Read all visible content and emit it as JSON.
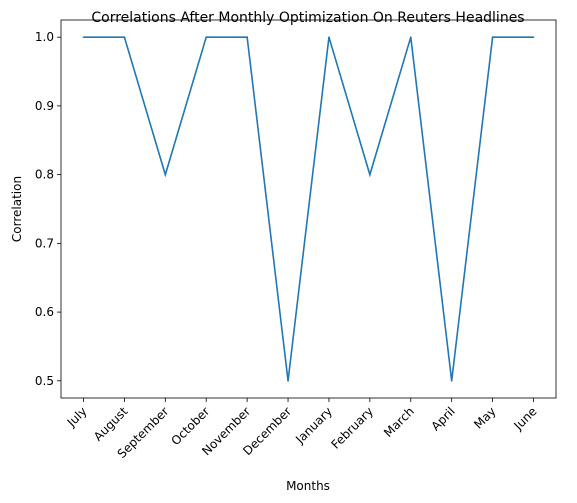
{
  "chart_data": {
    "type": "line",
    "title": "Correlations After Monthly Optimization On Reuters Headlines",
    "xlabel": "Months",
    "ylabel": "Correlation",
    "categories": [
      "July",
      "August",
      "September",
      "October",
      "November",
      "December",
      "January",
      "February",
      "March",
      "April",
      "May",
      "June"
    ],
    "series": [
      {
        "values": [
          1.0,
          1.0,
          0.8,
          1.0,
          1.0,
          0.5,
          1.0,
          0.8,
          1.0,
          0.5,
          1.0,
          1.0
        ],
        "color": "#1f77b4"
      }
    ],
    "ylim": [
      0.475,
      1.025
    ],
    "yticks": [
      0.5,
      0.6,
      0.7,
      0.8,
      0.9,
      1.0
    ],
    "ytick_labels": [
      "0.5",
      "0.6",
      "0.7",
      "0.8",
      "0.9",
      "1.0"
    ],
    "grid": false,
    "xtick_rotation": 45
  }
}
